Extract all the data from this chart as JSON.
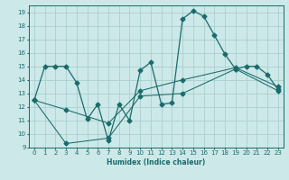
{
  "xlabel": "Humidex (Indice chaleur)",
  "bg_color": "#cce8e8",
  "grid_color": "#aacfcf",
  "line_color": "#1a6b6b",
  "xlim": [
    -0.5,
    23.5
  ],
  "ylim": [
    9,
    19.5
  ],
  "yticks": [
    9,
    10,
    11,
    12,
    13,
    14,
    15,
    16,
    17,
    18,
    19
  ],
  "xticks": [
    0,
    1,
    2,
    3,
    4,
    5,
    6,
    7,
    8,
    9,
    10,
    11,
    12,
    13,
    14,
    15,
    16,
    17,
    18,
    19,
    20,
    21,
    22,
    23
  ],
  "line1_x": [
    0,
    1,
    2,
    3,
    4,
    5,
    6,
    7,
    8,
    9,
    10,
    11,
    12,
    13,
    14,
    15,
    16,
    17,
    18,
    19,
    20,
    21,
    22,
    23
  ],
  "line1_y": [
    12.5,
    15.0,
    15.0,
    15.0,
    13.8,
    11.1,
    12.2,
    9.5,
    12.2,
    11.0,
    14.7,
    15.3,
    12.2,
    12.3,
    18.5,
    19.1,
    18.7,
    17.3,
    15.9,
    14.8,
    15.0,
    15.0,
    14.4,
    13.3
  ],
  "line2_x": [
    0,
    3,
    7,
    10,
    14,
    19,
    23
  ],
  "line2_y": [
    12.5,
    9.3,
    9.7,
    12.8,
    13.0,
    14.8,
    13.2
  ],
  "line3_x": [
    0,
    3,
    7,
    10,
    14,
    19,
    23
  ],
  "line3_y": [
    12.5,
    11.8,
    10.8,
    13.2,
    14.0,
    14.9,
    13.5
  ],
  "marker": "D",
  "markersize": 2.5,
  "linewidth1": 0.9,
  "linewidth2": 0.75,
  "tick_fontsize": 5.0,
  "xlabel_fontsize": 5.5
}
